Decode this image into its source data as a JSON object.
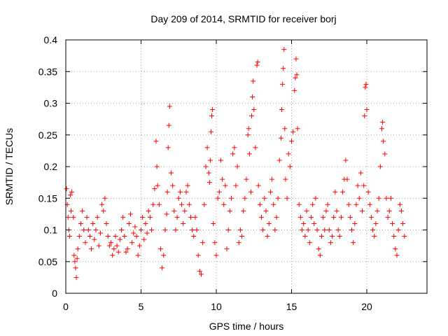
{
  "chart_data": {
    "type": "scatter",
    "title": "Day 209 of 2014, SRMTID for receiver borj",
    "xlabel": "GPS time / hours",
    "ylabel": "SRMTID / TECUs",
    "xlim": [
      0,
      24
    ],
    "ylim": [
      0,
      0.4
    ],
    "x_ticks": [
      0,
      5,
      10,
      15,
      20
    ],
    "x_tick_labels": [
      "0",
      "5",
      "10",
      "15",
      "20"
    ],
    "y_ticks": [
      0,
      0.05,
      0.1,
      0.15,
      0.2,
      0.25,
      0.3,
      0.35,
      0.4
    ],
    "y_tick_labels": [
      "0",
      "0.05",
      "0.1",
      "0.15",
      "0.2",
      "0.25",
      "0.3",
      "0.35",
      "0.4"
    ],
    "grid": true,
    "marker": "+",
    "series": [
      {
        "name": "SRMTID",
        "color": "#ff0000",
        "points": [
          [
            0.05,
            0.165
          ],
          [
            0.1,
            0.14
          ],
          [
            0.15,
            0.12
          ],
          [
            0.2,
            0.1
          ],
          [
            0.25,
            0.09
          ],
          [
            0.3,
            0.155
          ],
          [
            0.35,
            0.13
          ],
          [
            0.4,
            0.16
          ],
          [
            0.5,
            0.12
          ],
          [
            0.55,
            0.06
          ],
          [
            0.6,
            0.05
          ],
          [
            0.65,
            0.04
          ],
          [
            0.7,
            0.025
          ],
          [
            0.75,
            0.055
          ],
          [
            0.8,
            0.07
          ],
          [
            0.9,
            0.09
          ],
          [
            1.0,
            0.11
          ],
          [
            1.1,
            0.13
          ],
          [
            1.2,
            0.1
          ],
          [
            1.3,
            0.08
          ],
          [
            1.4,
            0.12
          ],
          [
            1.5,
            0.1
          ],
          [
            1.6,
            0.09
          ],
          [
            1.7,
            0.07
          ],
          [
            1.8,
            0.11
          ],
          [
            1.9,
            0.085
          ],
          [
            2.0,
            0.1
          ],
          [
            2.1,
            0.12
          ],
          [
            2.2,
            0.075
          ],
          [
            2.3,
            0.095
          ],
          [
            2.4,
            0.14
          ],
          [
            2.5,
            0.13
          ],
          [
            2.6,
            0.15
          ],
          [
            2.7,
            0.11
          ],
          [
            2.8,
            0.09
          ],
          [
            2.9,
            0.075
          ],
          [
            3.0,
            0.08
          ],
          [
            3.1,
            0.06
          ],
          [
            3.2,
            0.07
          ],
          [
            3.3,
            0.09
          ],
          [
            3.4,
            0.075
          ],
          [
            3.5,
            0.065
          ],
          [
            3.6,
            0.085
          ],
          [
            3.7,
            0.1
          ],
          [
            3.8,
            0.12
          ],
          [
            3.9,
            0.09
          ],
          [
            4.0,
            0.065
          ],
          [
            4.1,
            0.07
          ],
          [
            4.2,
            0.11
          ],
          [
            4.3,
            0.125
          ],
          [
            4.4,
            0.08
          ],
          [
            4.5,
            0.095
          ],
          [
            4.6,
            0.105
          ],
          [
            4.7,
            0.09
          ],
          [
            4.8,
            0.06
          ],
          [
            4.9,
            0.075
          ],
          [
            5.0,
            0.1
          ],
          [
            5.1,
            0.12
          ],
          [
            5.2,
            0.085
          ],
          [
            5.3,
            0.11
          ],
          [
            5.4,
            0.095
          ],
          [
            5.5,
            0.13
          ],
          [
            5.6,
            0.12
          ],
          [
            5.7,
            0.1
          ],
          [
            5.8,
            0.14
          ],
          [
            5.9,
            0.165
          ],
          [
            6.0,
            0.24
          ],
          [
            6.05,
            0.2
          ],
          [
            6.1,
            0.17
          ],
          [
            6.2,
            0.14
          ],
          [
            6.3,
            0.07
          ],
          [
            6.4,
            0.04
          ],
          [
            6.5,
            0.06
          ],
          [
            6.6,
            0.1
          ],
          [
            6.7,
            0.125
          ],
          [
            6.75,
            0.16
          ],
          [
            6.8,
            0.23
          ],
          [
            6.85,
            0.265
          ],
          [
            6.9,
            0.295
          ],
          [
            7.0,
            0.19
          ],
          [
            7.1,
            0.17
          ],
          [
            7.2,
            0.13
          ],
          [
            7.3,
            0.1
          ],
          [
            7.4,
            0.12
          ],
          [
            7.5,
            0.15
          ],
          [
            7.6,
            0.16
          ],
          [
            7.7,
            0.14
          ],
          [
            7.8,
            0.11
          ],
          [
            7.9,
            0.13
          ],
          [
            8.0,
            0.16
          ],
          [
            8.1,
            0.17
          ],
          [
            8.2,
            0.14
          ],
          [
            8.3,
            0.12
          ],
          [
            8.4,
            0.1
          ],
          [
            8.5,
            0.09
          ],
          [
            8.6,
            0.12
          ],
          [
            8.7,
            0.1
          ],
          [
            8.8,
            0.06
          ],
          [
            8.9,
            0.035
          ],
          [
            9.0,
            0.03
          ],
          [
            9.1,
            0.08
          ],
          [
            9.2,
            0.14
          ],
          [
            9.3,
            0.2
          ],
          [
            9.4,
            0.23
          ],
          [
            9.5,
            0.19
          ],
          [
            9.55,
            0.175
          ],
          [
            9.6,
            0.21
          ],
          [
            9.65,
            0.255
          ],
          [
            9.7,
            0.28
          ],
          [
            9.75,
            0.29
          ],
          [
            9.8,
            0.11
          ],
          [
            9.9,
            0.08
          ],
          [
            10.0,
            0.06
          ],
          [
            10.1,
            0.15
          ],
          [
            10.2,
            0.16
          ],
          [
            10.3,
            0.21
          ],
          [
            10.4,
            0.18
          ],
          [
            10.5,
            0.14
          ],
          [
            10.6,
            0.17
          ],
          [
            10.7,
            0.07
          ],
          [
            10.8,
            0.1
          ],
          [
            10.9,
            0.13
          ],
          [
            11.0,
            0.15
          ],
          [
            11.1,
            0.22
          ],
          [
            11.2,
            0.23
          ],
          [
            11.3,
            0.17
          ],
          [
            11.4,
            0.2
          ],
          [
            11.5,
            0.08
          ],
          [
            11.6,
            0.1
          ],
          [
            11.7,
            0.09
          ],
          [
            11.8,
            0.13
          ],
          [
            11.9,
            0.15
          ],
          [
            12.0,
            0.18
          ],
          [
            12.1,
            0.25
          ],
          [
            12.15,
            0.26
          ],
          [
            12.2,
            0.22
          ],
          [
            12.3,
            0.16
          ],
          [
            12.35,
            0.28
          ],
          [
            12.4,
            0.31
          ],
          [
            12.45,
            0.335
          ],
          [
            12.5,
            0.29
          ],
          [
            12.6,
            0.23
          ],
          [
            12.7,
            0.36
          ],
          [
            12.75,
            0.365
          ],
          [
            12.8,
            0.17
          ],
          [
            12.9,
            0.14
          ],
          [
            13.0,
            0.12
          ],
          [
            13.1,
            0.1
          ],
          [
            13.2,
            0.15
          ],
          [
            13.3,
            0.13
          ],
          [
            13.4,
            0.09
          ],
          [
            13.5,
            0.11
          ],
          [
            13.6,
            0.16
          ],
          [
            13.7,
            0.18
          ],
          [
            13.8,
            0.14
          ],
          [
            13.9,
            0.1
          ],
          [
            14.0,
            0.12
          ],
          [
            14.1,
            0.15
          ],
          [
            14.2,
            0.21
          ],
          [
            14.3,
            0.245
          ],
          [
            14.35,
            0.29
          ],
          [
            14.4,
            0.33
          ],
          [
            14.45,
            0.355
          ],
          [
            14.5,
            0.385
          ],
          [
            14.55,
            0.26
          ],
          [
            14.6,
            0.18
          ],
          [
            14.7,
            0.15
          ],
          [
            14.8,
            0.22
          ],
          [
            14.9,
            0.2
          ],
          [
            15.0,
            0.24
          ],
          [
            15.1,
            0.255
          ],
          [
            15.2,
            0.32
          ],
          [
            15.25,
            0.34
          ],
          [
            15.3,
            0.37
          ],
          [
            15.35,
            0.345
          ],
          [
            15.4,
            0.26
          ],
          [
            15.5,
            0.14
          ],
          [
            15.6,
            0.12
          ],
          [
            15.7,
            0.1
          ],
          [
            15.8,
            0.11
          ],
          [
            15.9,
            0.09
          ],
          [
            16.0,
            0.13
          ],
          [
            16.1,
            0.1
          ],
          [
            16.2,
            0.08
          ],
          [
            16.3,
            0.12
          ],
          [
            16.4,
            0.14
          ],
          [
            16.5,
            0.11
          ],
          [
            16.6,
            0.15
          ],
          [
            16.7,
            0.1
          ],
          [
            16.8,
            0.07
          ],
          [
            16.9,
            0.06
          ],
          [
            17.0,
            0.09
          ],
          [
            17.1,
            0.12
          ],
          [
            17.2,
            0.1
          ],
          [
            17.3,
            0.13
          ],
          [
            17.4,
            0.14
          ],
          [
            17.5,
            0.1
          ],
          [
            17.6,
            0.08
          ],
          [
            17.7,
            0.09
          ],
          [
            17.8,
            0.12
          ],
          [
            17.9,
            0.16
          ],
          [
            18.0,
            0.13
          ],
          [
            18.1,
            0.1
          ],
          [
            18.2,
            0.09
          ],
          [
            18.3,
            0.12
          ],
          [
            18.4,
            0.16
          ],
          [
            18.5,
            0.18
          ],
          [
            18.6,
            0.21
          ],
          [
            18.7,
            0.18
          ],
          [
            18.8,
            0.14
          ],
          [
            18.9,
            0.12
          ],
          [
            19.0,
            0.1
          ],
          [
            19.1,
            0.08
          ],
          [
            19.2,
            0.11
          ],
          [
            19.3,
            0.14
          ],
          [
            19.4,
            0.17
          ],
          [
            19.5,
            0.15
          ],
          [
            19.6,
            0.19
          ],
          [
            19.7,
            0.13
          ],
          [
            19.8,
            0.17
          ],
          [
            19.85,
            0.28
          ],
          [
            19.9,
            0.325
          ],
          [
            19.95,
            0.33
          ],
          [
            20.0,
            0.29
          ],
          [
            20.1,
            0.16
          ],
          [
            20.2,
            0.14
          ],
          [
            20.3,
            0.12
          ],
          [
            20.4,
            0.1
          ],
          [
            20.5,
            0.09
          ],
          [
            20.6,
            0.11
          ],
          [
            20.7,
            0.13
          ],
          [
            20.8,
            0.15
          ],
          [
            20.9,
            0.2
          ],
          [
            21.0,
            0.26
          ],
          [
            21.05,
            0.27
          ],
          [
            21.1,
            0.24
          ],
          [
            21.2,
            0.22
          ],
          [
            21.3,
            0.15
          ],
          [
            21.4,
            0.12
          ],
          [
            21.5,
            0.13
          ],
          [
            21.6,
            0.15
          ],
          [
            21.7,
            0.11
          ],
          [
            21.8,
            0.09
          ],
          [
            21.9,
            0.07
          ],
          [
            22.0,
            0.06
          ],
          [
            22.1,
            0.1
          ],
          [
            22.2,
            0.14
          ],
          [
            22.3,
            0.13
          ],
          [
            22.4,
            0.11
          ],
          [
            22.5,
            0.09
          ]
        ]
      }
    ]
  }
}
